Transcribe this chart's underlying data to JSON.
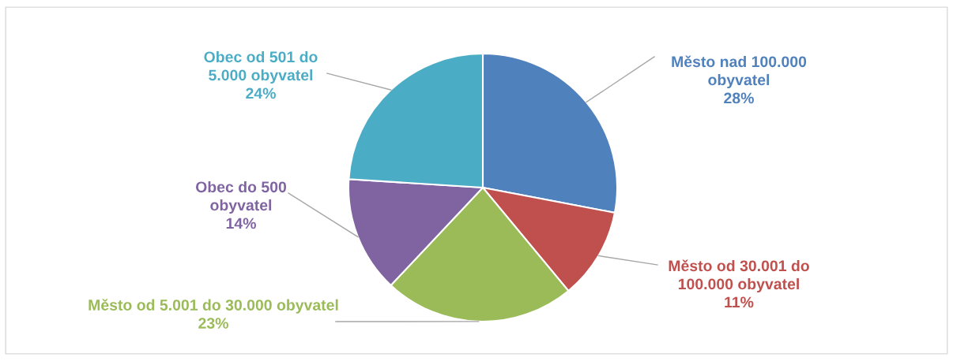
{
  "chart_data": {
    "type": "pie",
    "categories": [
      "Město nad 100.000\nobyvatel",
      "Město od 30.001 do\n100.000 obyvatel",
      "Město od 5.001 do 30.000 obyvatel",
      "Obec do 500\nobyvatel",
      "Obec od 501 do\n5.000 obyvatel"
    ],
    "values": [
      28,
      11,
      23,
      14,
      24
    ],
    "value_labels": [
      "28%",
      "11%",
      "23%",
      "14%",
      "24%"
    ],
    "colors": [
      "#4f81bd",
      "#c0504d",
      "#9bbb59",
      "#8064a2",
      "#4bacc6"
    ],
    "legend": false
  }
}
